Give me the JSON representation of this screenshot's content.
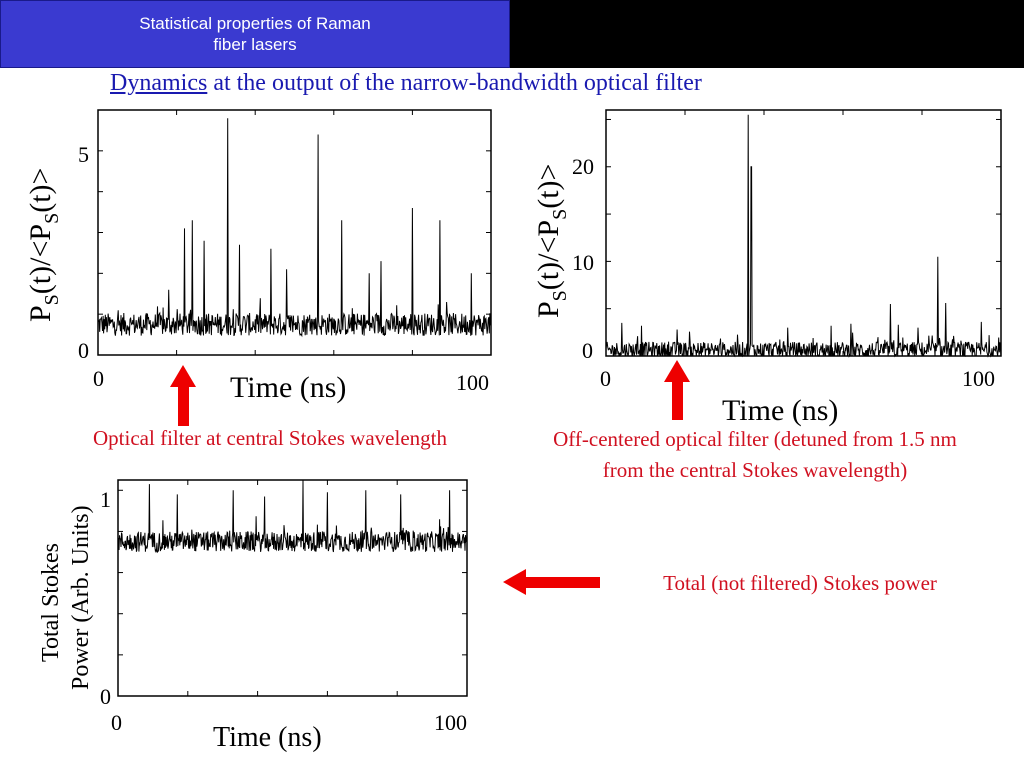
{
  "header": {
    "title_line1": "Statistical properties of Raman",
    "title_line2": "fiber lasers"
  },
  "subtitle": {
    "link_text": "Dynamics",
    "rest_text": " at the output of the narrow-bandwidth optical filter"
  },
  "colors": {
    "header_bg": "#3a3ad0",
    "subtitle": "#1a1ab0",
    "caption": "#d01020",
    "arrow": "#ee0000",
    "trace": "#000000"
  },
  "captions": {
    "central": "Optical filter at central Stokes wavelength",
    "offcenter_line1": "Off-centered optical filter (detuned from 1.5 nm",
    "offcenter_line2": "from the central Stokes wavelength)",
    "total": "Total (not filtered) Stokes power"
  },
  "arrows": [
    {
      "name": "arrow-up-central",
      "direction": "up"
    },
    {
      "name": "arrow-up-offcenter",
      "direction": "up"
    },
    {
      "name": "arrow-left-total",
      "direction": "left"
    }
  ],
  "chart_data": [
    {
      "type": "line",
      "ylabel_main": "P",
      "ylabel_sub": "S",
      "ylabel_mid": "(t)/<P",
      "ylabel_end": "(t)>",
      "xlabel": "Time (ns)",
      "x_ticks": [
        "0",
        "100"
      ],
      "y_ticks": [
        "0",
        "5"
      ],
      "xlim": [
        0,
        100
      ],
      "ylim": [
        0,
        6
      ],
      "series": [
        {
          "baseline": 0.75,
          "noise": 0.28,
          "spikes": [
            {
              "x": 18,
              "y": 1.6
            },
            {
              "x": 22,
              "y": 3.1
            },
            {
              "x": 24,
              "y": 3.3
            },
            {
              "x": 27,
              "y": 2.8
            },
            {
              "x": 33,
              "y": 5.8
            },
            {
              "x": 36,
              "y": 2.7
            },
            {
              "x": 44,
              "y": 2.6
            },
            {
              "x": 48,
              "y": 2.1
            },
            {
              "x": 56,
              "y": 5.4
            },
            {
              "x": 62,
              "y": 3.3
            },
            {
              "x": 69,
              "y": 2.0
            },
            {
              "x": 72,
              "y": 2.3
            },
            {
              "x": 80,
              "y": 3.6
            },
            {
              "x": 87,
              "y": 3.3
            },
            {
              "x": 95,
              "y": 2.0
            }
          ]
        }
      ]
    },
    {
      "type": "line",
      "ylabel_main": "P",
      "ylabel_sub": "S",
      "ylabel_mid": "(t)/<P",
      "ylabel_end": "(t)>",
      "xlabel": "Time (ns)",
      "x_ticks": [
        "0",
        "100"
      ],
      "y_ticks": [
        "0",
        "10",
        "20"
      ],
      "xlim": [
        0,
        100
      ],
      "ylim": [
        0,
        26
      ],
      "series": [
        {
          "baseline": 0.6,
          "noise": 0.9,
          "spikes": [
            {
              "x": 4,
              "y": 3.5
            },
            {
              "x": 9,
              "y": 3.2
            },
            {
              "x": 18,
              "y": 2.8
            },
            {
              "x": 36,
              "y": 25.5
            },
            {
              "x": 36.8,
              "y": 20.0
            },
            {
              "x": 46,
              "y": 3.0
            },
            {
              "x": 57,
              "y": 3.2
            },
            {
              "x": 62,
              "y": 3.4
            },
            {
              "x": 72,
              "y": 5.5
            },
            {
              "x": 74,
              "y": 3.3
            },
            {
              "x": 79,
              "y": 3.0
            },
            {
              "x": 84,
              "y": 10.5
            },
            {
              "x": 86,
              "y": 5.6
            },
            {
              "x": 95,
              "y": 3.6
            }
          ]
        }
      ]
    },
    {
      "type": "line",
      "ylabel_line1": "Total Stokes",
      "ylabel_line2": "Power (Arb. Units)",
      "xlabel": "Time (ns)",
      "x_ticks": [
        "0",
        "100"
      ],
      "y_ticks": [
        "0",
        "1"
      ],
      "xlim": [
        0,
        100
      ],
      "ylim": [
        0,
        1.05
      ],
      "series": [
        {
          "baseline": 0.75,
          "noise": 0.05,
          "spikes": [
            {
              "x": 9,
              "y": 1.03
            },
            {
              "x": 17,
              "y": 0.98
            },
            {
              "x": 33,
              "y": 1.0
            },
            {
              "x": 42,
              "y": 0.97
            },
            {
              "x": 53,
              "y": 1.08
            },
            {
              "x": 60,
              "y": 0.99
            },
            {
              "x": 71,
              "y": 1.0
            },
            {
              "x": 81,
              "y": 0.98
            },
            {
              "x": 95,
              "y": 1.0
            }
          ]
        }
      ]
    }
  ]
}
